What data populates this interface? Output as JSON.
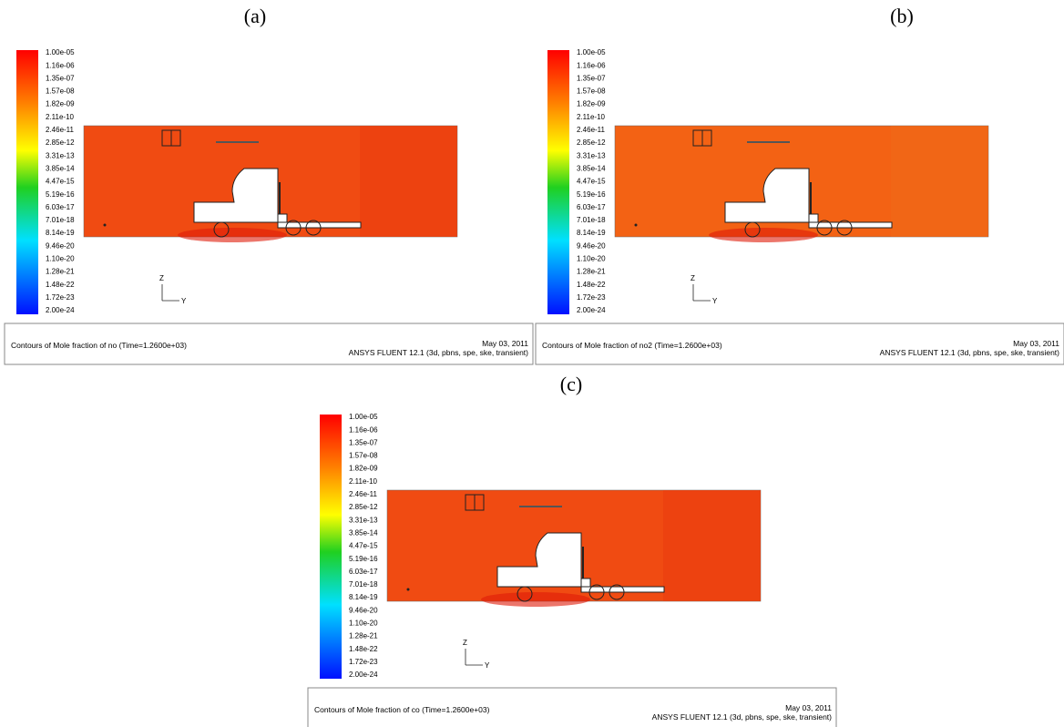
{
  "panels": [
    {
      "label": "(a)",
      "colorbar_labels": [
        "1.00e-05",
        "1.16e-06",
        "1.35e-07",
        "1.57e-08",
        "1.82e-09",
        "2.11e-10",
        "2.46e-11",
        "2.85e-12",
        "3.31e-13",
        "3.85e-14",
        "4.47e-15",
        "5.19e-16",
        "6.03e-17",
        "7.01e-18",
        "8.14e-19",
        "9.46e-20",
        "1.10e-20",
        "1.28e-21",
        "1.48e-22",
        "1.72e-23",
        "2.00e-24"
      ],
      "axis_z": "Z",
      "axis_y": "Y",
      "caption": "Contours of Mole fraction of no  (Time=1.2600e+03)",
      "date": "May 03, 2011",
      "software": "ANSYS FLUENT 12.1 (3d, pbns, spe, ske, transient)"
    },
    {
      "label": "(b)",
      "colorbar_labels": [
        "1.00e-05",
        "1.16e-06",
        "1.35e-07",
        "1.57e-08",
        "1.82e-09",
        "2.11e-10",
        "2.46e-11",
        "2.85e-12",
        "3.31e-13",
        "3.85e-14",
        "4.47e-15",
        "5.19e-16",
        "6.03e-17",
        "7.01e-18",
        "8.14e-19",
        "9.46e-20",
        "1.10e-20",
        "1.28e-21",
        "1.48e-22",
        "1.72e-23",
        "2.00e-24"
      ],
      "axis_z": "Z",
      "axis_y": "Y",
      "caption": "Contours of Mole fraction of no2  (Time=1.2600e+03)",
      "date": "May 03, 2011",
      "software": "ANSYS FLUENT 12.1 (3d, pbns, spe, ske, transient)"
    },
    {
      "label": "(c)",
      "colorbar_labels": [
        "1.00e-05",
        "1.16e-06",
        "1.35e-07",
        "1.57e-08",
        "1.82e-09",
        "2.11e-10",
        "2.46e-11",
        "2.85e-12",
        "3.31e-13",
        "3.85e-14",
        "4.47e-15",
        "5.19e-16",
        "6.03e-17",
        "7.01e-18",
        "8.14e-19",
        "9.46e-20",
        "1.10e-20",
        "1.28e-21",
        "1.48e-22",
        "1.72e-23",
        "2.00e-24"
      ],
      "axis_z": "Z",
      "axis_y": "Y",
      "caption": "Contours of Mole fraction of co  (Time=1.2600e+03)",
      "date": "May 03, 2011",
      "software": "ANSYS FLUENT 12.1 (3d, pbns, spe, ske, transient)"
    }
  ]
}
